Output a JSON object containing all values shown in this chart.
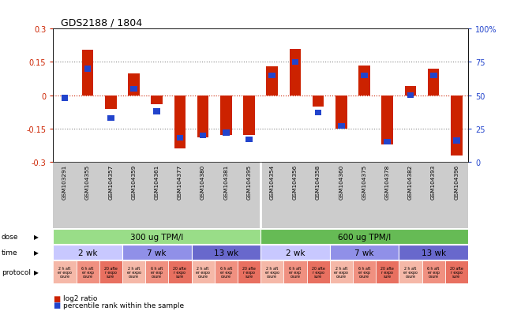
{
  "title": "GDS2188 / 1804",
  "samples": [
    "GSM103291",
    "GSM104355",
    "GSM104357",
    "GSM104359",
    "GSM104361",
    "GSM104377",
    "GSM104380",
    "GSM104381",
    "GSM104395",
    "GSM104354",
    "GSM104356",
    "GSM104358",
    "GSM104360",
    "GSM104375",
    "GSM104378",
    "GSM104382",
    "GSM104393",
    "GSM104396"
  ],
  "log2_ratio": [
    0.0,
    0.205,
    -0.06,
    0.1,
    -0.04,
    -0.24,
    -0.19,
    -0.18,
    -0.18,
    0.13,
    0.21,
    -0.05,
    -0.15,
    0.135,
    -0.22,
    0.04,
    0.12,
    -0.27
  ],
  "pct_rank": [
    48,
    70,
    33,
    55,
    38,
    18,
    20,
    22,
    17,
    65,
    75,
    37,
    27,
    65,
    15,
    50,
    65,
    16
  ],
  "dose_colors": [
    "#99dd88",
    "#66bb55"
  ],
  "time_colors": [
    "#c8c8ff",
    "#9090e8",
    "#6868cc"
  ],
  "proto_colors": [
    "#f5b8a8",
    "#f09080",
    "#e87060"
  ],
  "ylim": [
    -0.3,
    0.3
  ],
  "yticks": [
    -0.3,
    -0.15,
    0.0,
    0.15,
    0.3
  ],
  "pct_yticks": [
    0,
    25,
    50,
    75,
    100
  ],
  "bar_color_red": "#cc2200",
  "bar_color_blue": "#2244cc",
  "grid_color": "#888888",
  "bg_color": "#ffffff",
  "label_area_bg": "#cccccc"
}
